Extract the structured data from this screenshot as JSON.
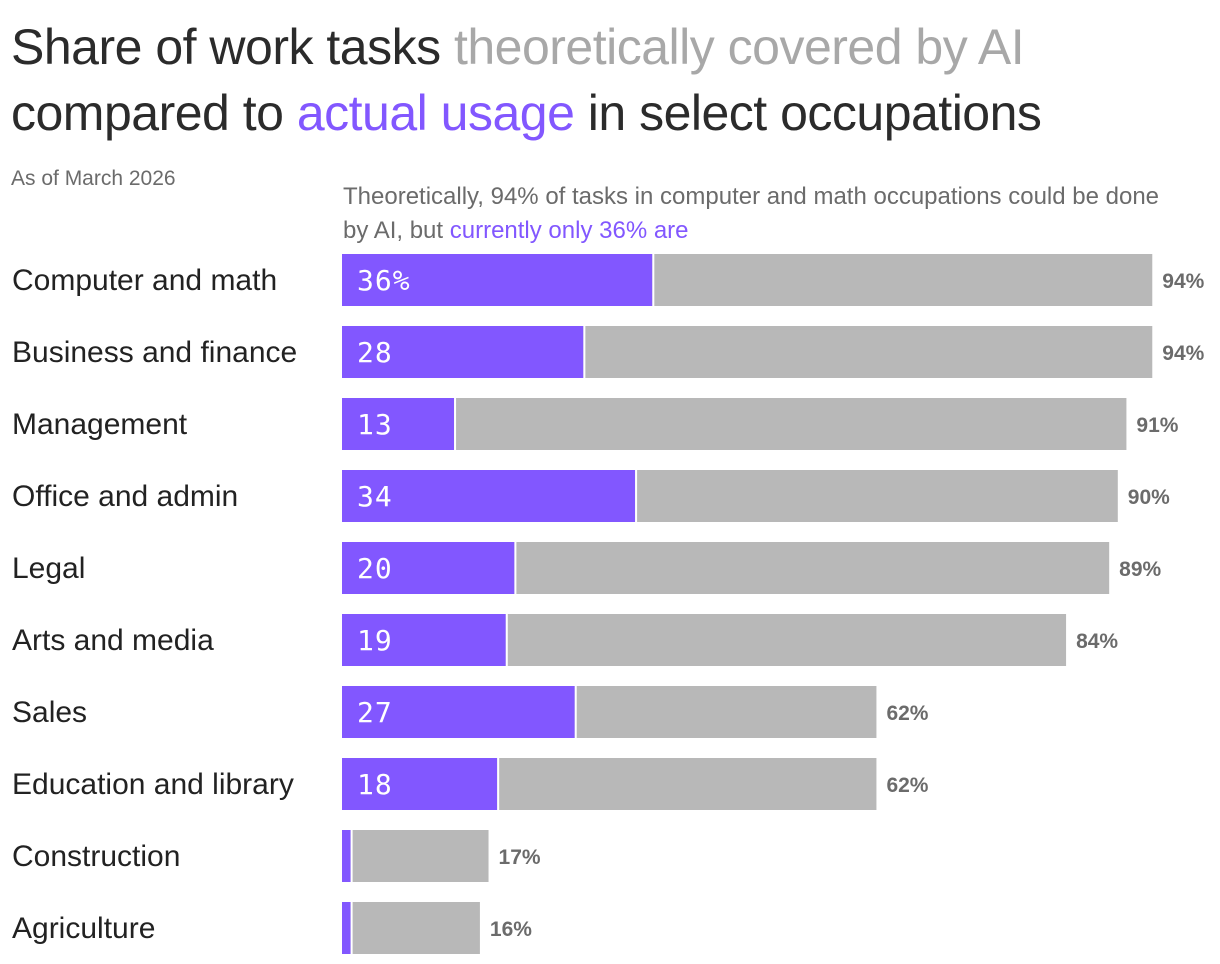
{
  "header": {
    "title_part1": "Share of work tasks ",
    "title_grey": "theoretically covered by AI",
    "title_part2": " compared to ",
    "title_purple": "actual usage",
    "title_part3": " in select occupations",
    "subtitle": "As of March 2026"
  },
  "annotation": {
    "text": "Theoretically, 94% of tasks in computer and math occupations could be done by AI, but ",
    "highlight": "currently only 36% are"
  },
  "colors": {
    "actual": "#8257ff",
    "theoretical": "#b8b8b8"
  },
  "chart_data": {
    "type": "bar",
    "orientation": "horizontal",
    "categories": [
      "Computer and math",
      "Business and finance",
      "Management",
      "Office and admin",
      "Legal",
      "Arts and media",
      "Sales",
      "Education and library",
      "Construction",
      "Agriculture"
    ],
    "series": [
      {
        "name": "actual usage",
        "values": [
          36,
          28,
          13,
          34,
          20,
          19,
          27,
          18,
          1,
          1
        ]
      },
      {
        "name": "theoretically covered by AI",
        "values": [
          94,
          94,
          91,
          90,
          89,
          84,
          62,
          62,
          17,
          16
        ]
      }
    ],
    "actual_labels": [
      "36%",
      "28",
      "13",
      "34",
      "20",
      "19",
      "27",
      "18",
      "",
      ""
    ],
    "theoretical_labels": [
      "94%",
      "94%",
      "91%",
      "90%",
      "89%",
      "84%",
      "62%",
      "62%",
      "17%",
      "16%"
    ],
    "xlim": [
      0,
      100
    ],
    "grid": false,
    "legend": "none"
  }
}
